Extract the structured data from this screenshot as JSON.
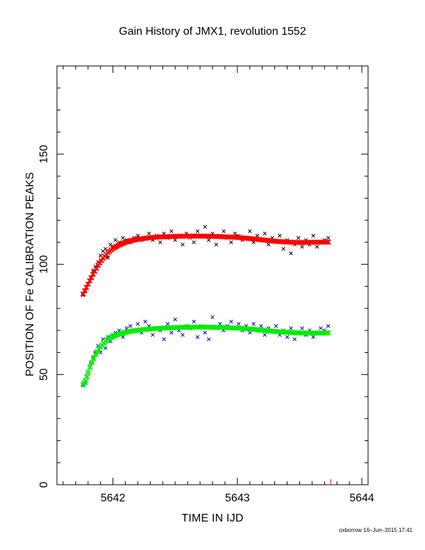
{
  "chart_data": {
    "type": "scatter",
    "title": "Gain History of JMX1, revolution 1552",
    "xlabel": "TIME IN IJD",
    "ylabel": "POSITION OF Fe CALIBRATION PEAKS",
    "xlim": [
      5641.55,
      5644.05
    ],
    "ylim": [
      0,
      190
    ],
    "xticks": [
      "5642",
      "5643",
      "5644"
    ],
    "xtick_values": [
      5642,
      5643,
      5644
    ],
    "yticks": [
      "0",
      "50",
      "100",
      "150"
    ],
    "ytick_values": [
      0,
      50,
      100,
      150
    ],
    "grid": false,
    "series": [
      {
        "color": "#000000",
        "marker": "x",
        "points": [
          [
            5641.76,
            86
          ],
          [
            5641.78,
            88
          ],
          [
            5641.8,
            91
          ],
          [
            5641.82,
            94
          ],
          [
            5641.84,
            97
          ],
          [
            5641.86,
            99
          ],
          [
            5641.88,
            101
          ],
          [
            5641.9,
            104
          ],
          [
            5641.92,
            106
          ],
          [
            5641.94,
            107
          ],
          [
            5641.96,
            103
          ],
          [
            5641.98,
            109
          ],
          [
            5642.0,
            108
          ],
          [
            5642.02,
            111
          ],
          [
            5642.05,
            110
          ],
          [
            5642.08,
            112
          ],
          [
            5642.11,
            111
          ],
          [
            5642.14,
            110
          ],
          [
            5642.17,
            112
          ],
          [
            5642.2,
            113
          ],
          [
            5642.23,
            111
          ],
          [
            5642.26,
            112
          ],
          [
            5642.29,
            114
          ],
          [
            5642.32,
            111
          ],
          [
            5642.35,
            113
          ],
          [
            5642.38,
            110
          ],
          [
            5642.41,
            114
          ],
          [
            5642.44,
            112
          ],
          [
            5642.47,
            115
          ],
          [
            5642.5,
            111
          ],
          [
            5642.53,
            113
          ],
          [
            5642.56,
            109
          ],
          [
            5642.59,
            114
          ],
          [
            5642.62,
            112
          ],
          [
            5642.65,
            110
          ],
          [
            5642.68,
            115
          ],
          [
            5642.71,
            113
          ],
          [
            5642.74,
            117
          ],
          [
            5642.77,
            111
          ],
          [
            5642.8,
            114
          ],
          [
            5642.83,
            109
          ],
          [
            5642.86,
            113
          ],
          [
            5642.89,
            115
          ],
          [
            5642.92,
            112
          ],
          [
            5642.95,
            110
          ],
          [
            5642.98,
            114
          ],
          [
            5643.01,
            113
          ],
          [
            5643.04,
            111
          ],
          [
            5643.07,
            112
          ],
          [
            5643.1,
            115
          ],
          [
            5643.13,
            110
          ],
          [
            5643.16,
            113
          ],
          [
            5643.19,
            111
          ],
          [
            5643.22,
            114
          ],
          [
            5643.25,
            109
          ],
          [
            5643.28,
            112
          ],
          [
            5643.31,
            110
          ],
          [
            5643.34,
            113
          ],
          [
            5643.37,
            107
          ],
          [
            5643.4,
            111
          ],
          [
            5643.43,
            105
          ],
          [
            5643.46,
            109
          ],
          [
            5643.49,
            112
          ],
          [
            5643.52,
            108
          ],
          [
            5643.55,
            111
          ],
          [
            5643.58,
            109
          ],
          [
            5643.61,
            113
          ],
          [
            5643.64,
            108
          ],
          [
            5643.67,
            110
          ],
          [
            5643.7,
            111
          ],
          [
            5643.73,
            112
          ]
        ]
      },
      {
        "color": "#ff0000",
        "marker": "x",
        "points": [
          [
            5641.76,
            86.5
          ],
          [
            5641.8,
            91
          ],
          [
            5641.84,
            95.5
          ],
          [
            5641.88,
            99.5
          ],
          [
            5641.92,
            102.8
          ],
          [
            5641.96,
            105.3
          ],
          [
            5642.0,
            107.2
          ],
          [
            5642.05,
            108.8
          ],
          [
            5642.1,
            110
          ],
          [
            5642.15,
            110.8
          ],
          [
            5642.2,
            111.4
          ],
          [
            5642.3,
            112.1
          ],
          [
            5642.4,
            112.5
          ],
          [
            5642.5,
            112.7
          ],
          [
            5642.6,
            112.8
          ],
          [
            5642.7,
            112.8
          ],
          [
            5642.8,
            112.7
          ],
          [
            5642.9,
            112.5
          ],
          [
            5643.0,
            112.2
          ],
          [
            5643.1,
            111.7
          ],
          [
            5643.2,
            111.1
          ],
          [
            5643.3,
            110.5
          ],
          [
            5643.4,
            110.1
          ],
          [
            5643.5,
            109.9
          ],
          [
            5643.6,
            110
          ],
          [
            5643.73,
            110.1
          ]
        ]
      },
      {
        "color": "#0000cc",
        "marker": "x",
        "points": [
          [
            5641.76,
            45
          ],
          [
            5641.78,
            46
          ],
          [
            5641.8,
            51
          ],
          [
            5641.82,
            55
          ],
          [
            5641.84,
            58
          ],
          [
            5641.86,
            60
          ],
          [
            5641.88,
            63
          ],
          [
            5641.9,
            60
          ],
          [
            5641.92,
            66
          ],
          [
            5641.94,
            62
          ],
          [
            5641.96,
            67
          ],
          [
            5641.98,
            65
          ],
          [
            5642.0,
            68
          ],
          [
            5642.02,
            69
          ],
          [
            5642.05,
            70
          ],
          [
            5642.08,
            67
          ],
          [
            5642.11,
            71
          ],
          [
            5642.14,
            72
          ],
          [
            5642.17,
            70
          ],
          [
            5642.2,
            73
          ],
          [
            5642.23,
            69
          ],
          [
            5642.26,
            74
          ],
          [
            5642.29,
            72
          ],
          [
            5642.32,
            68
          ],
          [
            5642.35,
            71
          ],
          [
            5642.38,
            70
          ],
          [
            5642.41,
            66
          ],
          [
            5642.44,
            73
          ],
          [
            5642.47,
            69
          ],
          [
            5642.5,
            75
          ],
          [
            5642.53,
            70
          ],
          [
            5642.56,
            68
          ],
          [
            5642.59,
            72
          ],
          [
            5642.62,
            71
          ],
          [
            5642.65,
            74
          ],
          [
            5642.68,
            67
          ],
          [
            5642.71,
            72
          ],
          [
            5642.74,
            69
          ],
          [
            5642.77,
            66
          ],
          [
            5642.8,
            76
          ],
          [
            5642.83,
            71
          ],
          [
            5642.86,
            73
          ],
          [
            5642.89,
            70
          ],
          [
            5642.92,
            72
          ],
          [
            5642.95,
            74
          ],
          [
            5642.98,
            71
          ],
          [
            5643.01,
            73
          ],
          [
            5643.04,
            70
          ],
          [
            5643.07,
            72
          ],
          [
            5643.1,
            69
          ],
          [
            5643.13,
            73
          ],
          [
            5643.16,
            70
          ],
          [
            5643.19,
            72
          ],
          [
            5643.22,
            68
          ],
          [
            5643.25,
            71
          ],
          [
            5643.28,
            70
          ],
          [
            5643.31,
            72
          ],
          [
            5643.34,
            68
          ],
          [
            5643.37,
            70
          ],
          [
            5643.4,
            67
          ],
          [
            5643.43,
            71
          ],
          [
            5643.46,
            66
          ],
          [
            5643.49,
            69
          ],
          [
            5643.52,
            71
          ],
          [
            5643.55,
            68
          ],
          [
            5643.58,
            70
          ],
          [
            5643.61,
            67
          ],
          [
            5643.64,
            69
          ],
          [
            5643.67,
            71
          ],
          [
            5643.7,
            70
          ],
          [
            5643.73,
            72
          ]
        ]
      },
      {
        "color": "#00ee00",
        "marker": "x",
        "points": [
          [
            5641.76,
            45.5
          ],
          [
            5641.78,
            47
          ],
          [
            5641.8,
            51
          ],
          [
            5641.83,
            55.5
          ],
          [
            5641.86,
            59.2
          ],
          [
            5641.9,
            62.5
          ],
          [
            5641.94,
            65
          ],
          [
            5641.98,
            66.8
          ],
          [
            5642.03,
            68
          ],
          [
            5642.08,
            68.9
          ],
          [
            5642.15,
            69.7
          ],
          [
            5642.25,
            70.4
          ],
          [
            5642.35,
            70.9
          ],
          [
            5642.45,
            71.2
          ],
          [
            5642.55,
            71.4
          ],
          [
            5642.65,
            71.5
          ],
          [
            5642.75,
            71.5
          ],
          [
            5642.85,
            71.4
          ],
          [
            5642.95,
            71.2
          ],
          [
            5643.05,
            70.9
          ],
          [
            5643.15,
            70.4
          ],
          [
            5643.25,
            69.8
          ],
          [
            5643.35,
            69.3
          ],
          [
            5643.45,
            69
          ],
          [
            5643.55,
            68.8
          ],
          [
            5643.65,
            68.8
          ],
          [
            5643.73,
            68.9
          ]
        ]
      }
    ]
  },
  "footer": "oxborrow 16–Jun–2015 17:41"
}
